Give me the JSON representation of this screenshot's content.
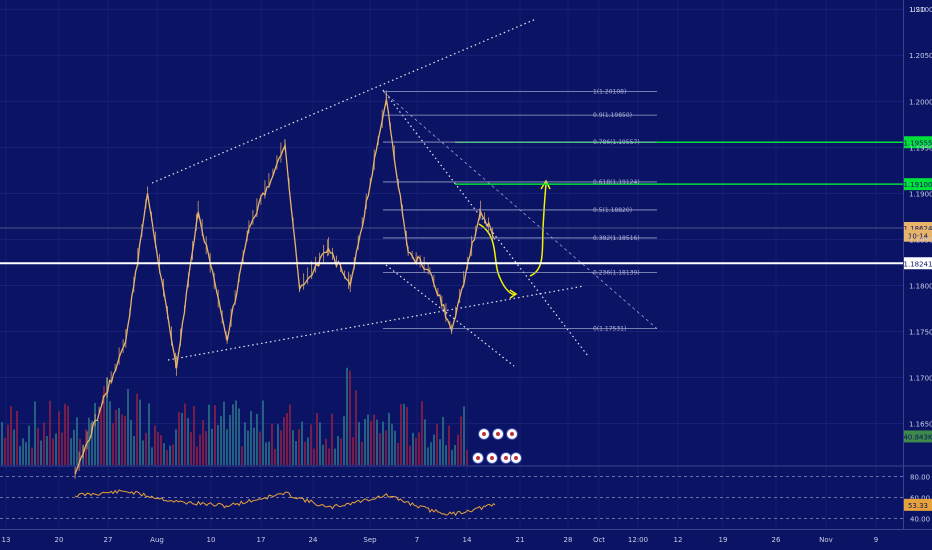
{
  "chart_data": [
    {
      "type": "line",
      "subtype": "candlestick price chart with drawings",
      "currency_label": "USD",
      "y_axis": {
        "ticks": [
          1.165,
          1.17,
          1.175,
          1.18,
          1.185,
          1.19,
          1.195,
          1.2,
          1.205,
          1.21
        ],
        "tick_labels": [
          "1.16500",
          "1.17000",
          "1.17500",
          "1.18000",
          "1.18500",
          "1.19000",
          "1.19500",
          "1.20000",
          "1.20500",
          "1.21000"
        ],
        "range": [
          1.1605,
          1.211
        ]
      },
      "x_axis": {
        "tick_labels": [
          "13",
          "20",
          "27",
          "Aug",
          "10",
          "17",
          "24",
          "Sep",
          "7",
          "14",
          "21",
          "28",
          "Oct",
          "12:00",
          "12",
          "19",
          "26",
          "Nov",
          "9"
        ]
      },
      "price_series": {
        "color": "#e8b46a",
        "dates": [
          "Jul 20",
          "Jul 27",
          "Jul 30",
          "Aug 3",
          "Aug 6",
          "Aug 10",
          "Aug 13",
          "Aug 18",
          "Aug 20",
          "Aug 24",
          "Aug 27",
          "Sep 1",
          "Sep 4",
          "Sep 7",
          "Sep 10",
          "Sep 14",
          "Sep 16"
        ],
        "values": [
          1.1595,
          1.174,
          1.19,
          1.171,
          1.188,
          1.174,
          1.1862,
          1.1952,
          1.1796,
          1.184,
          1.18,
          1.2002,
          1.1836,
          1.1815,
          1.1751,
          1.188,
          1.185
        ]
      },
      "volume_series": {
        "colors": {
          "up": "#2a6f86",
          "down": "#8a2044"
        }
      },
      "fibonacci_levels": [
        {
          "label": "1(1.20108)",
          "value": 1.20108
        },
        {
          "label": "0.9(1.19850)",
          "value": 1.1985
        },
        {
          "label": "0.786(1.19557)",
          "value": 1.19557
        },
        {
          "label": "0.618(1.19124)",
          "value": 1.19124
        },
        {
          "label": "0.5(1.18820)",
          "value": 1.1882
        },
        {
          "label": "0.382(1.18516)",
          "value": 1.18516
        },
        {
          "label": "0.236(1.18139)",
          "value": 1.18139
        },
        {
          "label": "0(1.17531)",
          "value": 1.17531
        }
      ],
      "horizontal_lines": [
        {
          "label": "1.19555",
          "value": 1.19555,
          "color": "#00e03a"
        },
        {
          "label": "1.19100",
          "value": 1.191,
          "color": "#00e03a"
        },
        {
          "label": "1.18241",
          "value": 1.18241,
          "color": "#ffffff"
        },
        {
          "label": "1.18624",
          "value": 1.18624,
          "color": "#6b6f9a"
        }
      ],
      "price_badges": [
        {
          "label": "1.18624",
          "value": 1.18624,
          "color": "#e8b46a"
        },
        {
          "label": "10:14",
          "value": 1.1854,
          "color": "#e8b46a"
        },
        {
          "label": "40.843K",
          "value": 1.1636,
          "color": "#3d8a4a"
        }
      ],
      "annotation_colors": {
        "trendlines": "#ffffff",
        "projection_arrow": "#f2f200"
      }
    },
    {
      "type": "line",
      "indicator": "RSI",
      "color": "#e8a23a",
      "y_axis": {
        "ticks": [
          80,
          60,
          40
        ],
        "tick_labels": [
          "80.00",
          "60.00",
          "40.00"
        ],
        "range": [
          30,
          90
        ]
      },
      "current_value_label": "53.33",
      "dates": [
        "Jul 20",
        "Jul 27",
        "Aug 3",
        "Aug 10",
        "Aug 18",
        "Aug 24",
        "Sep 1",
        "Sep 7",
        "Sep 10",
        "Sep 16"
      ],
      "values": [
        62,
        66,
        56,
        52,
        64,
        50,
        62,
        48,
        44,
        53
      ]
    }
  ]
}
